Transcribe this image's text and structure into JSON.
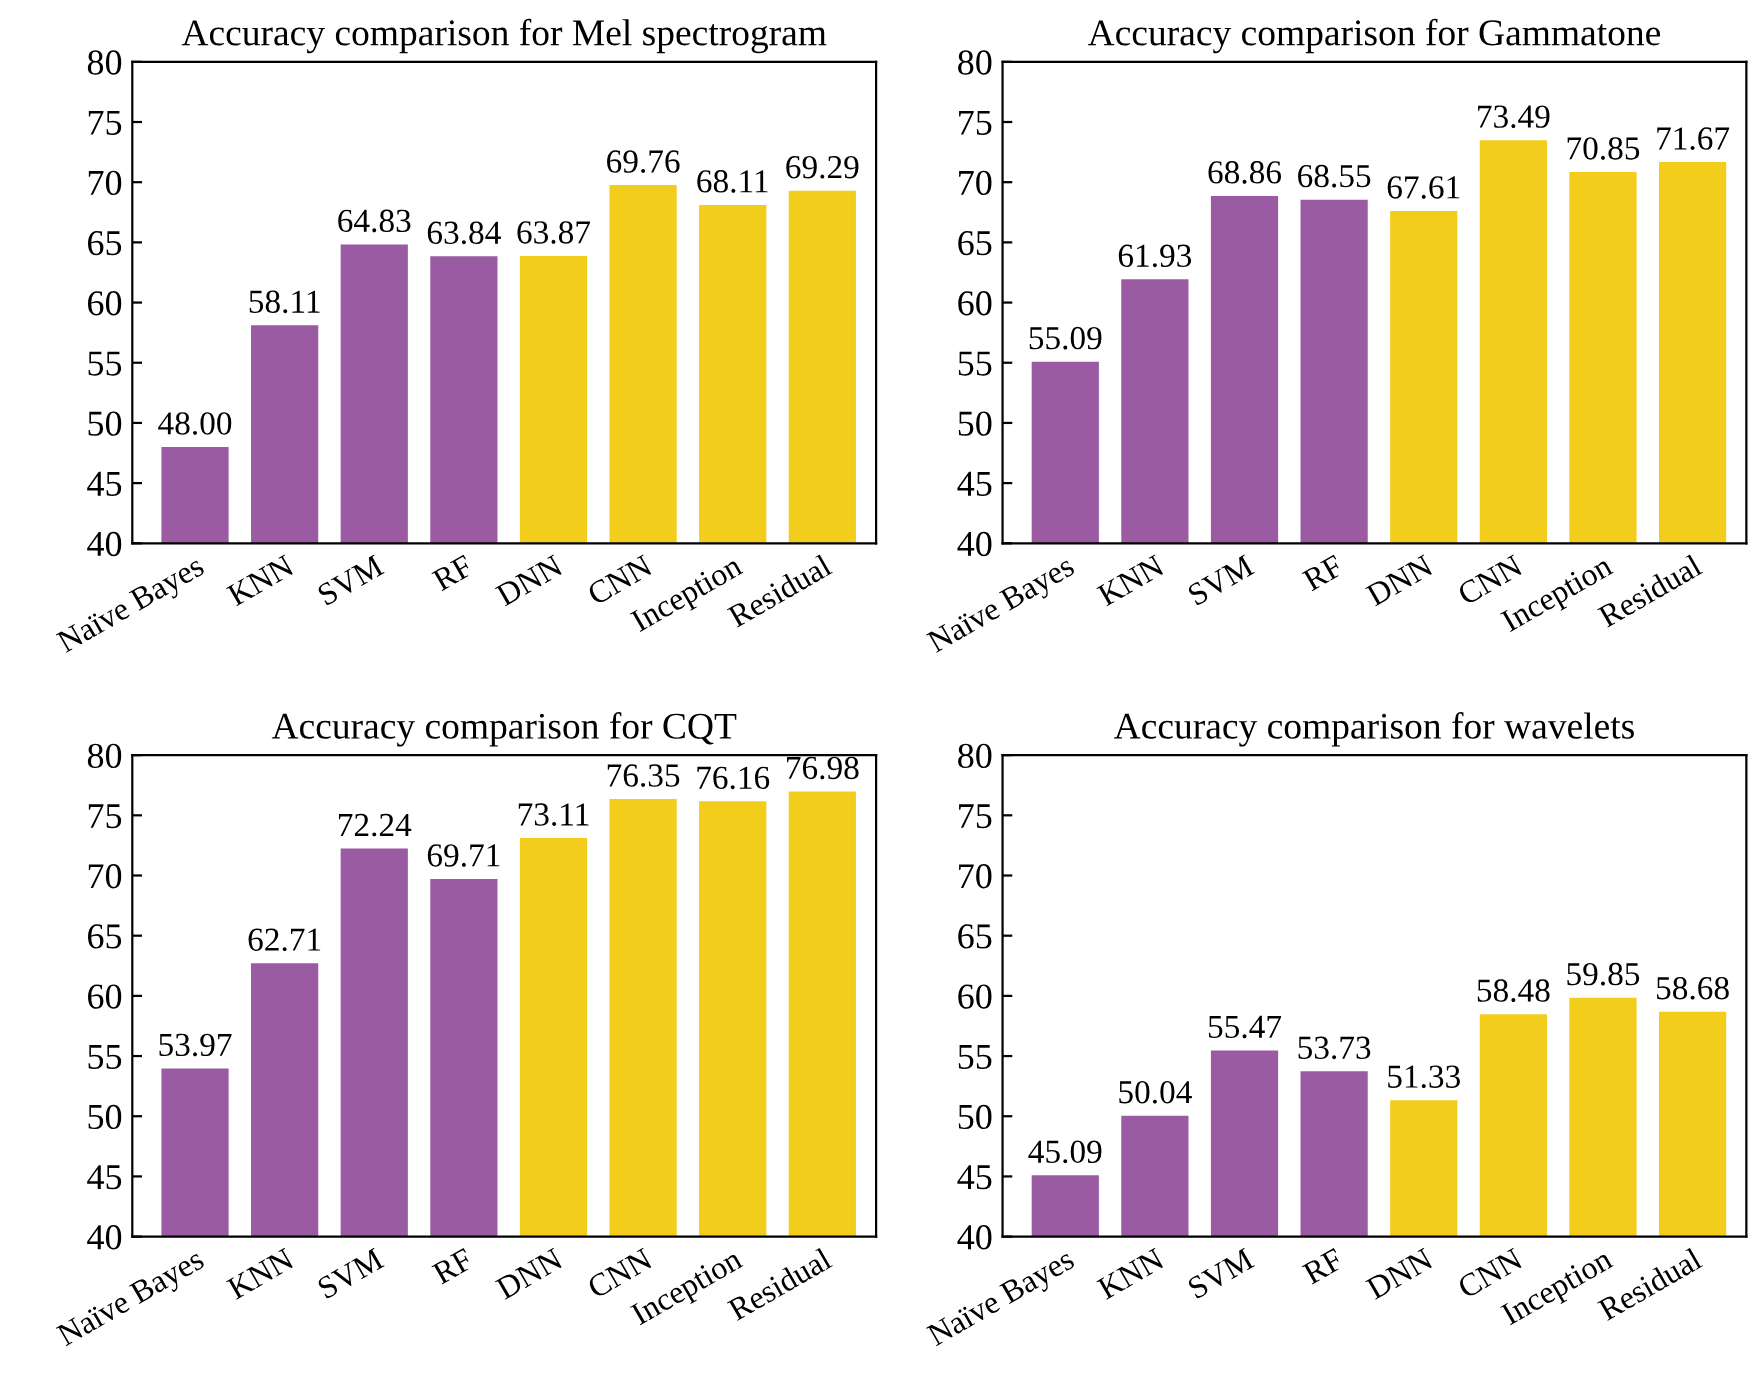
{
  "chart_data": [
    {
      "type": "bar",
      "title": "Accuracy comparison for Mel spectrogram",
      "categories": [
        "Naïve Bayes",
        "KNN",
        "SVM",
        "RF",
        "DNN",
        "CNN",
        "Inception",
        "Residual"
      ],
      "values": [
        48.0,
        58.11,
        64.83,
        63.84,
        63.87,
        69.76,
        68.11,
        69.29
      ],
      "value_labels": [
        "48.00",
        "58.11",
        "64.83",
        "63.84",
        "63.87",
        "69.76",
        "68.11",
        "69.29"
      ],
      "colors": [
        "#9a5ba3",
        "#9a5ba3",
        "#9a5ba3",
        "#9a5ba3",
        "#f2cd1c",
        "#f2cd1c",
        "#f2cd1c",
        "#f2cd1c"
      ],
      "ylim": [
        40,
        80
      ],
      "yticks": [
        40,
        45,
        50,
        55,
        60,
        65,
        70,
        75,
        80
      ]
    },
    {
      "type": "bar",
      "title": "Accuracy comparison for Gammatone",
      "categories": [
        "Naïve Bayes",
        "KNN",
        "SVM",
        "RF",
        "DNN",
        "CNN",
        "Inception",
        "Residual"
      ],
      "values": [
        55.09,
        61.93,
        68.86,
        68.55,
        67.61,
        73.49,
        70.85,
        71.67
      ],
      "value_labels": [
        "55.09",
        "61.93",
        "68.86",
        "68.55",
        "67.61",
        "73.49",
        "70.85",
        "71.67"
      ],
      "colors": [
        "#9a5ba3",
        "#9a5ba3",
        "#9a5ba3",
        "#9a5ba3",
        "#f2cd1c",
        "#f2cd1c",
        "#f2cd1c",
        "#f2cd1c"
      ],
      "ylim": [
        40,
        80
      ],
      "yticks": [
        40,
        45,
        50,
        55,
        60,
        65,
        70,
        75,
        80
      ]
    },
    {
      "type": "bar",
      "title": "Accuracy comparison for CQT",
      "categories": [
        "Naïve Bayes",
        "KNN",
        "SVM",
        "RF",
        "DNN",
        "CNN",
        "Inception",
        "Residual"
      ],
      "values": [
        53.97,
        62.71,
        72.24,
        69.71,
        73.11,
        76.35,
        76.16,
        76.98
      ],
      "value_labels": [
        "53.97",
        "62.71",
        "72.24",
        "69.71",
        "73.11",
        "76.35",
        "76.16",
        "76.98"
      ],
      "colors": [
        "#9a5ba3",
        "#9a5ba3",
        "#9a5ba3",
        "#9a5ba3",
        "#f2cd1c",
        "#f2cd1c",
        "#f2cd1c",
        "#f2cd1c"
      ],
      "ylim": [
        40,
        80
      ],
      "yticks": [
        40,
        45,
        50,
        55,
        60,
        65,
        70,
        75,
        80
      ]
    },
    {
      "type": "bar",
      "title": "Accuracy comparison for wavelets",
      "categories": [
        "Naïve Bayes",
        "KNN",
        "SVM",
        "RF",
        "DNN",
        "CNN",
        "Inception",
        "Residual"
      ],
      "values": [
        45.09,
        50.04,
        55.47,
        53.73,
        51.33,
        58.48,
        59.85,
        58.68
      ],
      "value_labels": [
        "45.09",
        "50.04",
        "55.47",
        "53.73",
        "51.33",
        "58.48",
        "59.85",
        "58.68"
      ],
      "colors": [
        "#9a5ba3",
        "#9a5ba3",
        "#9a5ba3",
        "#9a5ba3",
        "#f2cd1c",
        "#f2cd1c",
        "#f2cd1c",
        "#f2cd1c"
      ],
      "ylim": [
        40,
        80
      ],
      "yticks": [
        40,
        45,
        50,
        55,
        60,
        65,
        70,
        75,
        80
      ]
    }
  ]
}
